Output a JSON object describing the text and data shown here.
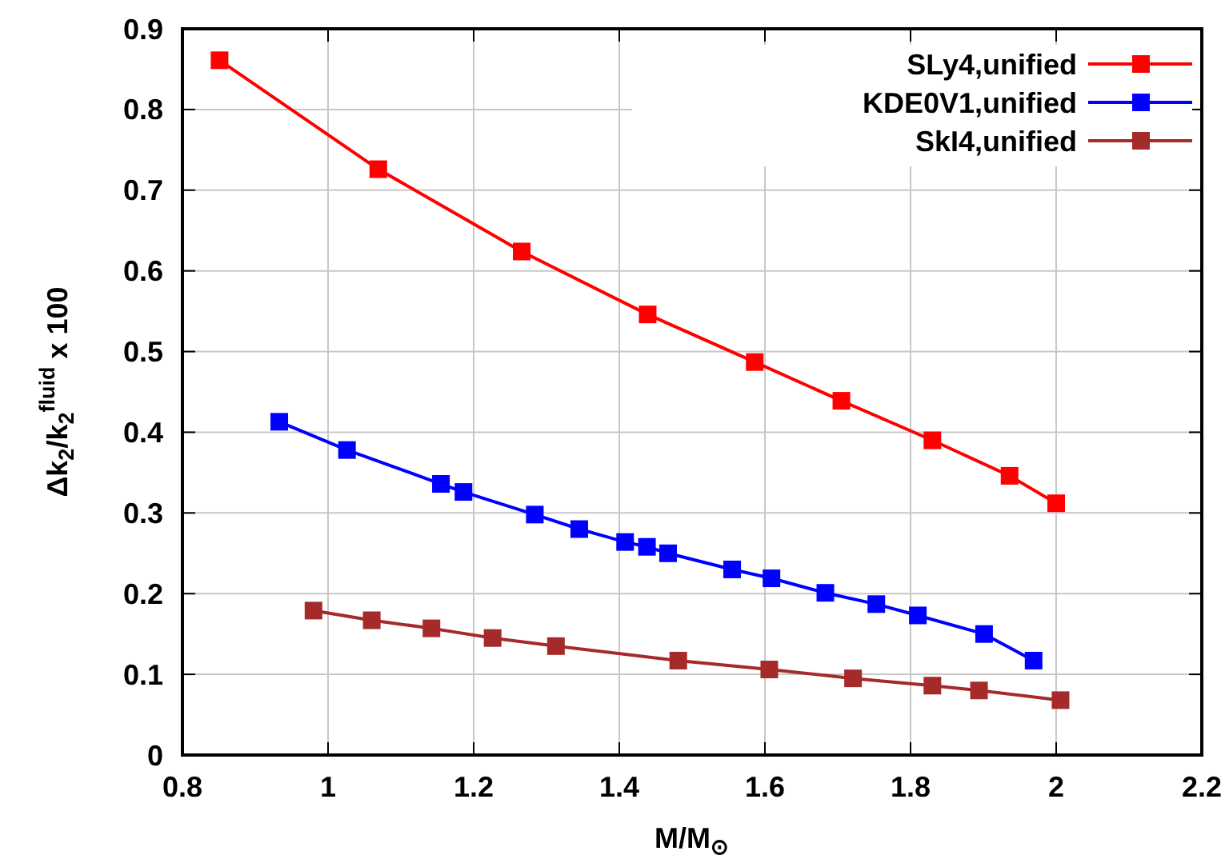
{
  "chart_data": {
    "type": "line",
    "xlabel": "M/M$_{⊙}$",
    "ylabel": "Δk$_{2}$/k$_{2}$$^{fluid}$ x 100",
    "xlim": [
      0.8,
      2.2
    ],
    "xticks": [
      0.8,
      1,
      1.2,
      1.4,
      1.6,
      1.8,
      2,
      2.2
    ],
    "ylim": [
      0,
      0.9
    ],
    "yticks": [
      0,
      0.1,
      0.2,
      0.3,
      0.4,
      0.5,
      0.6,
      0.7,
      0.8,
      0.9
    ],
    "grid": true,
    "legend": "top right",
    "marker": "square",
    "line_style": "solid",
    "series": [
      {
        "name": "SLy4,unified",
        "color": "#ff0000",
        "x": [
          0.851,
          1.069,
          1.266,
          1.439,
          1.586,
          1.705,
          1.83,
          1.936,
          2.0
        ],
        "values": [
          0.861,
          0.726,
          0.624,
          0.546,
          0.487,
          0.439,
          0.39,
          0.346,
          0.312
        ]
      },
      {
        "name": "KDE0V1,unified",
        "color": "#0000ff",
        "x": [
          0.933,
          1.026,
          1.155,
          1.186,
          1.284,
          1.345,
          1.408,
          1.438,
          1.467,
          1.555,
          1.609,
          1.683,
          1.753,
          1.81,
          1.901,
          1.969
        ],
        "values": [
          0.413,
          0.378,
          0.336,
          0.326,
          0.298,
          0.28,
          0.264,
          0.258,
          0.25,
          0.23,
          0.219,
          0.201,
          0.187,
          0.173,
          0.15,
          0.117
        ]
      },
      {
        "name": "SkI4,unified",
        "color": "#a52a2a",
        "x": [
          0.98,
          1.06,
          1.142,
          1.226,
          1.313,
          1.481,
          1.606,
          1.721,
          1.83,
          1.894,
          2.006
        ],
        "values": [
          0.179,
          0.167,
          0.157,
          0.145,
          0.135,
          0.117,
          0.106,
          0.095,
          0.086,
          0.08,
          0.068
        ]
      }
    ]
  }
}
